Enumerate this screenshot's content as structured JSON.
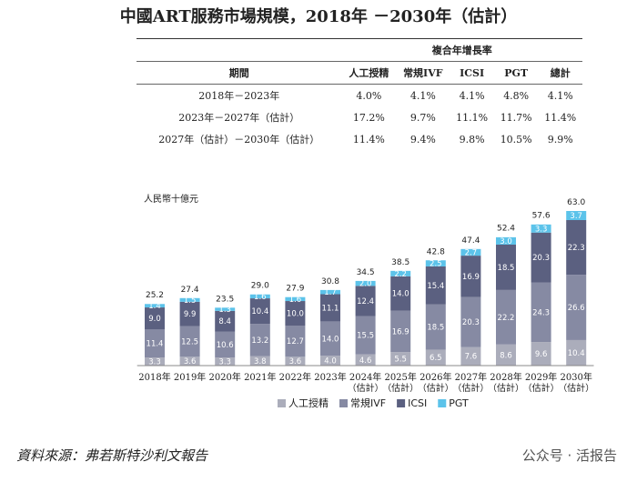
{
  "title": "中國ART服務市場規模，2018年 －2030年（估計）",
  "table": {
    "group_header": "複合年增長率",
    "columns": [
      "期間",
      "人工授精",
      "常規IVF",
      "ICSI",
      "PGT",
      "總計"
    ],
    "rows": [
      [
        "2018年－2023年",
        "4.0%",
        "4.1%",
        "4.1%",
        "4.8%",
        "4.1%"
      ],
      [
        "2023年－2027年（估計）",
        "17.2%",
        "9.7%",
        "11.1%",
        "11.7%",
        "11.4%"
      ],
      [
        "2027年（估計）－2030年（估計）",
        "11.4%",
        "9.4%",
        "9.8%",
        "10.5%",
        "9.9%"
      ]
    ]
  },
  "chart_data": {
    "type": "stacked_bar",
    "y_label": "人民幣十億元",
    "categories": [
      "2018年",
      "2019年",
      "2020年",
      "2021年",
      "2022年",
      "2023年",
      "2024年（估計）",
      "2025年（估計）",
      "2026年（估計）",
      "2027年（估計）",
      "2028年（估計）",
      "2029年（估計）",
      "2030年（估計）"
    ],
    "series": [
      {
        "name": "人工授精",
        "color": "#abadbb",
        "values": [
          3.3,
          3.6,
          3.3,
          3.8,
          3.6,
          4.0,
          4.6,
          5.5,
          6.5,
          7.6,
          8.6,
          9.6,
          10.4
        ],
        "value_labels": [
          "3.3",
          "3.6",
          "3.3",
          "3.8",
          "3.6",
          "4.0",
          "4.6",
          "5.5",
          "6.5",
          "7.6",
          "8.6",
          "9.6",
          "10.4"
        ]
      },
      {
        "name": "常規IVF",
        "color": "#868aa3",
        "values": [
          11.4,
          12.5,
          10.6,
          13.2,
          12.7,
          14.0,
          15.5,
          16.9,
          18.5,
          20.3,
          22.2,
          24.3,
          26.6
        ],
        "value_labels": [
          "11.4",
          "12.5",
          "10.6",
          "13.2",
          "12.7",
          "14.0",
          "15.5",
          "16.9",
          "18.5",
          "20.3",
          "22.2",
          "24.3",
          "26.6"
        ]
      },
      {
        "name": "ICSI",
        "color": "#5b6080",
        "values": [
          9.0,
          9.9,
          8.4,
          10.4,
          10.0,
          11.1,
          12.4,
          14.0,
          15.4,
          16.9,
          18.5,
          20.3,
          22.3
        ],
        "value_labels": [
          "9.0",
          "9.9",
          "8.4",
          "10.4",
          "10.0",
          "11.1",
          "12.4",
          "14.0",
          "15.4",
          "16.9",
          "18.5",
          "20.3",
          "22.3"
        ]
      },
      {
        "name": "PGT",
        "color": "#5cc3ea",
        "values": [
          1.4,
          1.5,
          1.3,
          1.6,
          1.6,
          1.7,
          2.0,
          2.2,
          2.5,
          2.7,
          3.0,
          3.3,
          3.7
        ],
        "value_labels": [
          "1.4",
          "1.5",
          "1.3",
          "1.6",
          "1.6",
          "1.7",
          "2.0",
          "2.2",
          "2.5",
          "2.7",
          "3.0",
          "3.3",
          "3.7"
        ]
      }
    ],
    "totals": {
      "values": [
        25.2,
        27.4,
        23.5,
        29.0,
        27.9,
        30.8,
        34.5,
        38.5,
        42.8,
        47.4,
        52.4,
        57.6,
        63.0
      ],
      "value_labels": [
        "25.2",
        "27.4",
        "23.5",
        "29.0",
        "27.9",
        "30.8",
        "34.5",
        "38.5",
        "42.8",
        "47.4",
        "52.4",
        "57.6",
        "63.0"
      ]
    }
  },
  "source": "資料來源：弗若斯特沙利文報告",
  "watermark": "公众号 · 活报告"
}
